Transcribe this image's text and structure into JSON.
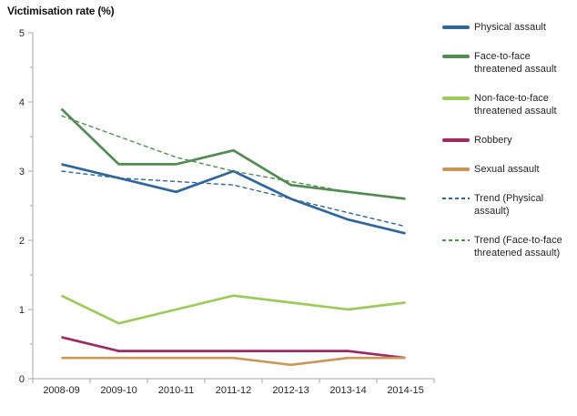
{
  "chart_data": {
    "type": "line",
    "title": "Victimisation rate (%)",
    "categories": [
      "2008-09",
      "2009-10",
      "2010-11",
      "2011-12",
      "2012-13",
      "2013-14",
      "2014-15"
    ],
    "y_ticks": [
      "0",
      "1",
      "2",
      "3",
      "4",
      "5"
    ],
    "ylim": [
      0,
      5
    ],
    "y_minor_step": 0.5,
    "grid": false,
    "legend_position": "right",
    "axis_color": "#a6a6a6",
    "text_color": "#262626",
    "series": [
      {
        "name": "Physical assault",
        "color": "#31669a",
        "dashed": false,
        "values": [
          3.1,
          2.9,
          2.7,
          3.0,
          2.6,
          2.3,
          2.1
        ]
      },
      {
        "name": "Face-to-face threatened assault",
        "color": "#538c53",
        "dashed": false,
        "values": [
          3.9,
          3.1,
          3.1,
          3.3,
          2.8,
          2.7,
          2.6
        ]
      },
      {
        "name": "Non-face-to-face threatened assault",
        "color": "#9ccb5c",
        "dashed": false,
        "values": [
          1.2,
          0.8,
          1.0,
          1.2,
          1.1,
          1.0,
          1.1
        ]
      },
      {
        "name": "Robbery",
        "color": "#9e2a63",
        "dashed": false,
        "values": [
          0.6,
          0.4,
          0.4,
          0.4,
          0.4,
          0.4,
          0.3
        ]
      },
      {
        "name": "Sexual assault",
        "color": "#c99759",
        "dashed": false,
        "values": [
          0.3,
          0.3,
          0.3,
          0.3,
          0.2,
          0.3,
          0.3
        ]
      },
      {
        "name": "Trend (Physical assault)",
        "color": "#31669a",
        "dashed": true,
        "values": [
          3.0,
          2.9,
          2.85,
          2.8,
          2.6,
          2.4,
          2.2
        ]
      },
      {
        "name": "Trend (Face-to-face threatened assault)",
        "color": "#538c53",
        "dashed": true,
        "values": [
          3.8,
          3.5,
          3.2,
          3.0,
          2.85,
          2.7,
          2.6
        ]
      }
    ]
  }
}
